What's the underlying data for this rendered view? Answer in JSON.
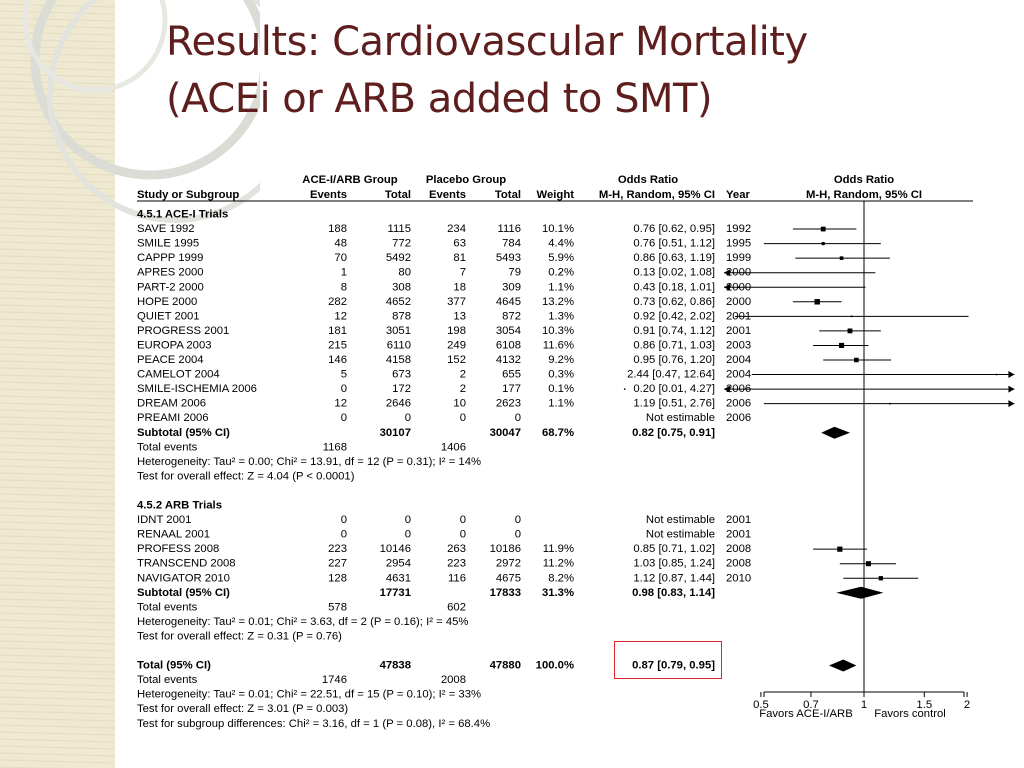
{
  "title_lines": [
    "Results: Cardiovascular Mortality",
    "(ACEi or ARB added to SMT)"
  ],
  "highlight_label": "0.87 [0.79, 0.95]",
  "chart_data": {
    "type": "forest",
    "group_headers": {
      "exp": "ACE-I/ARB Group",
      "ctl": "Placebo Group",
      "or_text": "Odds Ratio",
      "or_plot": "Odds Ratio"
    },
    "column_headers": {
      "study": "Study or Subgroup",
      "exp_events": "Events",
      "exp_total": "Total",
      "ctl_events": "Events",
      "ctl_total": "Total",
      "weight": "Weight",
      "ci": "M-H, Random, 95% CI",
      "year": "Year",
      "plot_ci": "M-H, Random, 95% CI"
    },
    "x_scale": "log",
    "x_ticks": [
      0.5,
      0.7,
      1,
      1.5,
      2
    ],
    "x_tick_labels": [
      "0.5",
      "0.7",
      "1",
      "1.5",
      "2"
    ],
    "xlim": [
      0.39,
      2.75
    ],
    "favors_left": "Favors ACE-I/ARB",
    "favors_right": "Favors control",
    "rows": [
      {
        "kind": "header",
        "label": "4.5.1 ACE-I Trials"
      },
      {
        "kind": "study",
        "label": "SAVE 1992",
        "ee": "188",
        "et": "1115",
        "ce": "234",
        "ct": "1116",
        "w": "10.1%",
        "ci": "0.76 [0.62, 0.95]",
        "year": "1992",
        "or": 0.76,
        "lo": 0.62,
        "hi": 0.95
      },
      {
        "kind": "study",
        "label": "SMILE 1995",
        "ee": "48",
        "et": "772",
        "ce": "63",
        "ct": "784",
        "w": "4.4%",
        "ci": "0.76 [0.51, 1.12]",
        "year": "1995",
        "or": 0.76,
        "lo": 0.51,
        "hi": 1.12
      },
      {
        "kind": "study",
        "label": "CAPPP 1999",
        "ee": "70",
        "et": "5492",
        "ce": "81",
        "ct": "5493",
        "w": "5.9%",
        "ci": "0.86 [0.63, 1.19]",
        "year": "1999",
        "or": 0.86,
        "lo": 0.63,
        "hi": 1.19
      },
      {
        "kind": "study",
        "label": "APRES 2000",
        "ee": "1",
        "et": "80",
        "ce": "7",
        "ct": "79",
        "w": "0.2%",
        "ci": "0.13 [0.02, 1.08]",
        "year": "2000",
        "or": 0.13,
        "lo": 0.02,
        "hi": 1.08
      },
      {
        "kind": "study",
        "label": "PART-2 2000",
        "ee": "8",
        "et": "308",
        "ce": "18",
        "ct": "309",
        "w": "1.1%",
        "ci": "0.43 [0.18, 1.01]",
        "year": "2000",
        "or": 0.43,
        "lo": 0.18,
        "hi": 1.01
      },
      {
        "kind": "study",
        "label": "HOPE 2000",
        "ee": "282",
        "et": "4652",
        "ce": "377",
        "ct": "4645",
        "w": "13.2%",
        "ci": "0.73 [0.62, 0.86]",
        "year": "2000",
        "or": 0.73,
        "lo": 0.62,
        "hi": 0.86
      },
      {
        "kind": "study",
        "label": "QUIET 2001",
        "ee": "12",
        "et": "878",
        "ce": "13",
        "ct": "872",
        "w": "1.3%",
        "ci": "0.92 [0.42, 2.02]",
        "year": "2001",
        "or": 0.92,
        "lo": 0.42,
        "hi": 2.02
      },
      {
        "kind": "study",
        "label": "PROGRESS 2001",
        "ee": "181",
        "et": "3051",
        "ce": "198",
        "ct": "3054",
        "w": "10.3%",
        "ci": "0.91 [0.74, 1.12]",
        "year": "2001",
        "or": 0.91,
        "lo": 0.74,
        "hi": 1.12
      },
      {
        "kind": "study",
        "label": "EUROPA 2003",
        "ee": "215",
        "et": "6110",
        "ce": "249",
        "ct": "6108",
        "w": "11.6%",
        "ci": "0.86 [0.71, 1.03]",
        "year": "2003",
        "or": 0.86,
        "lo": 0.71,
        "hi": 1.03
      },
      {
        "kind": "study",
        "label": "PEACE 2004",
        "ee": "146",
        "et": "4158",
        "ce": "152",
        "ct": "4132",
        "w": "9.2%",
        "ci": "0.95 [0.76, 1.20]",
        "year": "2004",
        "or": 0.95,
        "lo": 0.76,
        "hi": 1.2
      },
      {
        "kind": "study",
        "label": "CAMELOT 2004",
        "ee": "5",
        "et": "673",
        "ce": "2",
        "ct": "655",
        "w": "0.3%",
        "ci": "2.44 [0.47, 12.64]",
        "year": "2004",
        "or": 2.44,
        "lo": 0.47,
        "hi": 12.64
      },
      {
        "kind": "study",
        "label": "SMILE-ISCHEMIA 2006",
        "ee": "0",
        "et": "172",
        "ce": "2",
        "ct": "177",
        "w": "0.1%",
        "ci": "0.20 [0.01, 4.27]",
        "year": "2006",
        "or": 0.2,
        "lo": 0.01,
        "hi": 4.27
      },
      {
        "kind": "study",
        "label": "DREAM 2006",
        "ee": "12",
        "et": "2646",
        "ce": "10",
        "ct": "2623",
        "w": "1.1%",
        "ci": "1.19 [0.51, 2.76]",
        "year": "2006",
        "or": 1.19,
        "lo": 0.51,
        "hi": 2.76
      },
      {
        "kind": "study",
        "label": "PREAMI 2006",
        "ee": "0",
        "et": "0",
        "ce": "0",
        "ct": "0",
        "w": "",
        "ci": "Not estimable",
        "year": "2006"
      },
      {
        "kind": "subtotal",
        "label": "Subtotal (95% CI)",
        "et": "30107",
        "ct": "30047",
        "w": "68.7%",
        "ci": "0.82 [0.75, 0.91]",
        "or": 0.82,
        "lo": 0.75,
        "hi": 0.91
      },
      {
        "kind": "note",
        "label": "Total events",
        "ee": "1168",
        "ce": "1406"
      },
      {
        "kind": "note",
        "label": "Heterogeneity: Tau² = 0.00; Chi² = 13.91, df = 12 (P = 0.31); I² = 14%"
      },
      {
        "kind": "note",
        "label": "Test for overall effect: Z = 4.04 (P < 0.0001)"
      },
      {
        "kind": "blank"
      },
      {
        "kind": "header",
        "label": "4.5.2 ARB Trials"
      },
      {
        "kind": "study",
        "label": "IDNT 2001",
        "ee": "0",
        "et": "0",
        "ce": "0",
        "ct": "0",
        "w": "",
        "ci": "Not estimable",
        "year": "2001"
      },
      {
        "kind": "study",
        "label": "RENAAL 2001",
        "ee": "0",
        "et": "0",
        "ce": "0",
        "ct": "0",
        "w": "",
        "ci": "Not estimable",
        "year": "2001"
      },
      {
        "kind": "study",
        "label": "PROFESS 2008",
        "ee": "223",
        "et": "10146",
        "ce": "263",
        "ct": "10186",
        "w": "11.9%",
        "ci": "0.85 [0.71, 1.02]",
        "year": "2008",
        "or": 0.85,
        "lo": 0.71,
        "hi": 1.02
      },
      {
        "kind": "study",
        "label": "TRANSCEND 2008",
        "ee": "227",
        "et": "2954",
        "ce": "223",
        "ct": "2972",
        "w": "11.2%",
        "ci": "1.03 [0.85, 1.24]",
        "year": "2008",
        "or": 1.03,
        "lo": 0.85,
        "hi": 1.24
      },
      {
        "kind": "study",
        "label": "NAVIGATOR 2010",
        "ee": "128",
        "et": "4631",
        "ce": "116",
        "ct": "4675",
        "w": "8.2%",
        "ci": "1.12 [0.87, 1.44]",
        "year": "2010",
        "or": 1.12,
        "lo": 0.87,
        "hi": 1.44
      },
      {
        "kind": "subtotal",
        "label": "Subtotal (95% CI)",
        "et": "17731",
        "ct": "17833",
        "w": "31.3%",
        "ci": "0.98 [0.83, 1.14]",
        "or": 0.98,
        "lo": 0.83,
        "hi": 1.14
      },
      {
        "kind": "note",
        "label": "Total events",
        "ee": "578",
        "ce": "602"
      },
      {
        "kind": "note",
        "label": "Heterogeneity: Tau² = 0.01; Chi² = 3.63, df = 2 (P = 0.16); I² = 45%"
      },
      {
        "kind": "note",
        "label": "Test for overall effect: Z = 0.31 (P = 0.76)"
      },
      {
        "kind": "blank"
      },
      {
        "kind": "total",
        "label": "Total (95% CI)",
        "et": "47838",
        "ct": "47880",
        "w": "100.0%",
        "ci": "0.87 [0.79, 0.95]",
        "or": 0.87,
        "lo": 0.79,
        "hi": 0.95
      },
      {
        "kind": "note",
        "label": "Total events",
        "ee": "1746",
        "ce": "2008"
      },
      {
        "kind": "note",
        "label": "Heterogeneity: Tau² = 0.01; Chi² = 22.51, df = 15 (P = 0.10); I² = 33%"
      },
      {
        "kind": "note",
        "label": "Test for overall effect: Z = 3.01 (P = 0.003)"
      },
      {
        "kind": "note",
        "label": "Test for subgroup differences: Chi² = 3.16, df = 1 (P = 0.08), I² = 68.4%"
      }
    ]
  }
}
